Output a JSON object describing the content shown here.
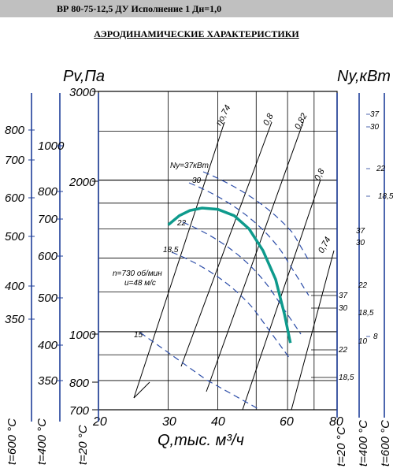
{
  "header": {
    "title": "ВР 80-75-12,5 ДУ Исполнение 1 Дн=1,0"
  },
  "subtitle": "АЭРОДИНАМИЧЕСКИЕ ХАРАКТЕРИСТИКИ",
  "chart_data": {
    "type": "line",
    "ylabel_left": "Pv,Па",
    "ylabel_right": "Ny,кВт",
    "xlabel": "Q,тыс. м³/ч",
    "x_ticks": [
      "20",
      "30",
      "40",
      "60",
      "80"
    ],
    "y_ticks": [
      "700",
      "800",
      "1000",
      "2000",
      "3000"
    ],
    "efficiency_labels": [
      "ηо,74",
      "0,8",
      "0,82",
      "0,8",
      "0,74"
    ],
    "power_labels": [
      "Ny=37кВт",
      "30",
      "22",
      "18,5",
      "15"
    ],
    "right_power_labels_chart": [
      "37",
      "30",
      "22",
      "18,5"
    ],
    "operating_note": [
      "n=730 об/мин",
      "u=48 м/с"
    ],
    "operating_curve": {
      "color": "#0e9a8c",
      "x": [
        30,
        32,
        34,
        36.5,
        40,
        44,
        48,
        52,
        56,
        59,
        61
      ],
      "y": [
        1630,
        1700,
        1740,
        1760,
        1750,
        1700,
        1600,
        1450,
        1270,
        1080,
        950
      ]
    },
    "temp_scales": [
      {
        "label": "t=600 °C",
        "values": [
          "800",
          "700",
          "600",
          "500",
          "400",
          "350"
        ]
      },
      {
        "label": "t=400 °C",
        "values": [
          "1000",
          "800",
          "700",
          "600",
          "500",
          "400",
          "350"
        ]
      },
      {
        "label": "t=20 °C",
        "values": []
      }
    ],
    "right_scales": [
      {
        "label": "t=20 °C",
        "values": [
          "37",
          "30",
          "22",
          "18,5"
        ]
      },
      {
        "label": "t=400 °C",
        "values": [
          "37",
          "30",
          "22",
          "18,5",
          "10"
        ]
      },
      {
        "label": "t=600 °C",
        "values": [
          "37",
          "30",
          "22",
          "18,5",
          "8"
        ]
      }
    ]
  }
}
